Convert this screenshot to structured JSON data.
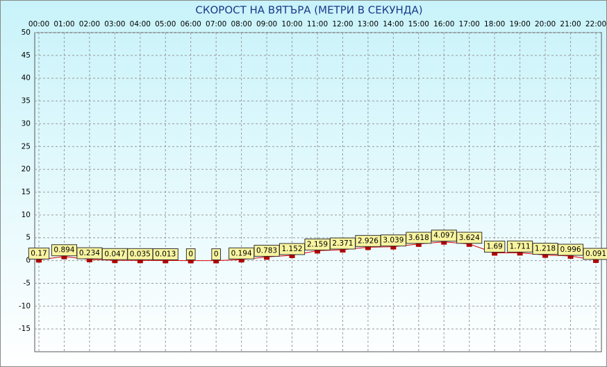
{
  "chart_data": {
    "type": "line",
    "title": "СКОРОСТ НА ВЯТЪРА (МЕТРИ В СЕКУНДА)",
    "categories": [
      "00:00",
      "01:00",
      "02:00",
      "03:00",
      "04:00",
      "05:00",
      "06:00",
      "07:00",
      "08:00",
      "09:00",
      "10:00",
      "11:00",
      "12:00",
      "13:00",
      "14:00",
      "15:00",
      "16:00",
      "17:00",
      "18:00",
      "19:00",
      "20:00",
      "21:00",
      "22:00"
    ],
    "values": [
      0.17,
      0.894,
      0.234,
      0.047,
      0.035,
      0.013,
      0,
      0,
      0.194,
      0.783,
      1.152,
      2.159,
      2.371,
      2.926,
      3.039,
      3.618,
      4.097,
      3.624,
      1.69,
      1.711,
      1.218,
      0.996,
      0.091
    ],
    "color": "#e00000",
    "marker_color": "#b00000",
    "label_color": "#f8f4a0",
    "ylim": [
      -20,
      50
    ],
    "yticks": [
      -15,
      -10,
      -5,
      0,
      5,
      10,
      15,
      20,
      25,
      30,
      35,
      40,
      45,
      50
    ],
    "grid": true
  }
}
